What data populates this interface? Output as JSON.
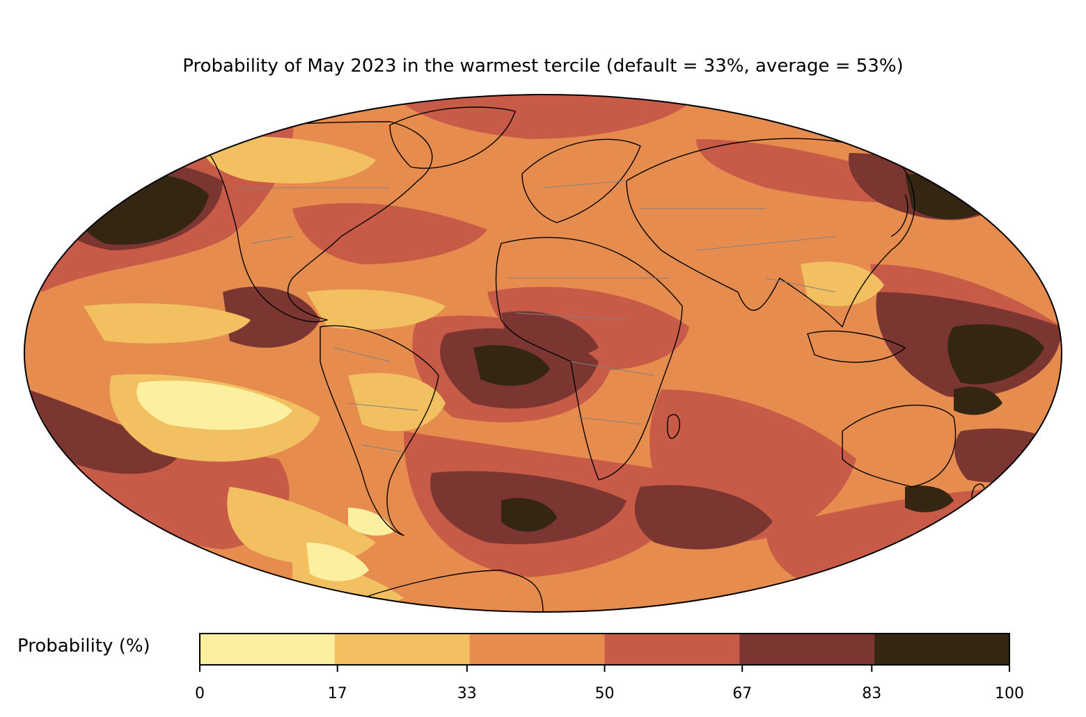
{
  "title": "Probability of May 2023 in the warmest tercile (default = 33%, average = 53%)",
  "colorbar": {
    "label": "Probability (%)",
    "ticks": [
      "0",
      "17",
      "33",
      "50",
      "67",
      "83",
      "100"
    ],
    "colors": [
      "#fdefa0",
      "#f2c060",
      "#e58c4e",
      "#c85a48",
      "#7b3632",
      "#352513"
    ]
  },
  "map": {
    "projection": "mollweide",
    "ocean_base_color": "#e58c4e",
    "coastline_color": "#000000",
    "border_color": "#808080"
  }
}
